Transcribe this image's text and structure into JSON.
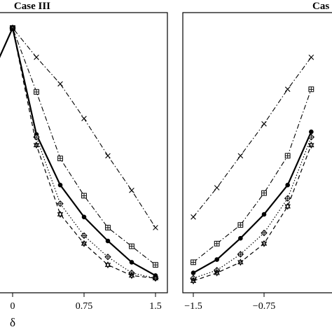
{
  "chart_data": [
    {
      "type": "line",
      "title": "Case III",
      "xlabel": "δ",
      "ylabel": "",
      "x_ticks": [
        "0",
        "0.75",
        "1.5"
      ],
      "xlim": [
        -0.25,
        1.5
      ],
      "ylim": [
        0,
        1
      ],
      "grid": false,
      "x": [
        -0.25,
        0,
        0.25,
        0.5,
        0.75,
        1.0,
        1.25,
        1.5
      ],
      "series": [
        {
          "marker": "cross",
          "line": "dashdot",
          "values": [
            0.8,
            1.0,
            0.89,
            0.79,
            0.66,
            0.52,
            0.39,
            0.25
          ]
        },
        {
          "marker": "boxed-plus",
          "line": "dashdot",
          "values": [
            0.8,
            1.0,
            0.76,
            0.51,
            0.37,
            0.25,
            0.18,
            0.11
          ]
        },
        {
          "marker": "filled-circle",
          "line": "solid",
          "values": [
            0.8,
            1.0,
            0.6,
            0.41,
            0.29,
            0.2,
            0.12,
            0.07
          ]
        },
        {
          "marker": "diamond-plus",
          "line": "dotted",
          "values": [
            0.8,
            1.0,
            0.59,
            0.34,
            0.22,
            0.14,
            0.08,
            0.06
          ]
        },
        {
          "marker": "star",
          "line": "dashed",
          "values": [
            0.8,
            1.0,
            0.56,
            0.3,
            0.19,
            0.11,
            0.07,
            0.06
          ]
        }
      ]
    },
    {
      "type": "line",
      "title": "Cas",
      "xlabel": "",
      "ylabel": "",
      "x_ticks": [
        "−1.5",
        "−0.75"
      ],
      "xlim": [
        -1.5,
        -0.25
      ],
      "ylim": [
        0,
        1
      ],
      "grid": false,
      "x": [
        -1.5,
        -1.25,
        -1.0,
        -0.75,
        -0.5,
        -0.25
      ],
      "series": [
        {
          "marker": "cross",
          "line": "dashdot",
          "values": [
            0.29,
            0.4,
            0.52,
            0.64,
            0.77,
            0.89
          ]
        },
        {
          "marker": "boxed-plus",
          "line": "dashdot",
          "values": [
            0.12,
            0.19,
            0.26,
            0.38,
            0.52,
            0.77
          ]
        },
        {
          "marker": "filled-circle",
          "line": "solid",
          "values": [
            0.08,
            0.13,
            0.21,
            0.3,
            0.41,
            0.61
          ]
        },
        {
          "marker": "diamond-plus",
          "line": "dotted",
          "values": [
            0.06,
            0.09,
            0.15,
            0.23,
            0.36,
            0.59
          ]
        },
        {
          "marker": "star",
          "line": "dashed",
          "values": [
            0.05,
            0.08,
            0.12,
            0.19,
            0.33,
            0.56
          ]
        }
      ]
    }
  ]
}
